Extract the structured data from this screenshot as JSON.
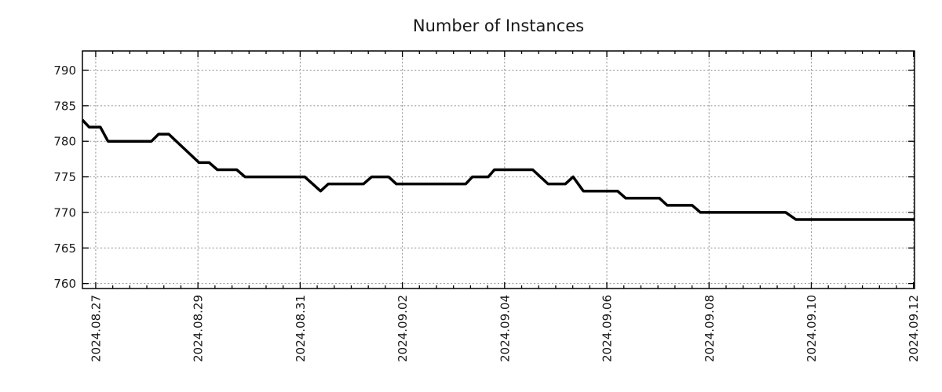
{
  "colors": {
    "background": "#ffffff",
    "text": "#1a1a1a",
    "axis": "#000000",
    "grid": "#909090",
    "line": "#000000"
  },
  "chart_data": {
    "type": "line",
    "title": "Number of Instances",
    "subtitle": "",
    "legend": {
      "show": false
    },
    "grid": {
      "show": true,
      "style": "dotted"
    },
    "x_axis": {
      "label": "",
      "unit": "days since 2024-08-27 00:00",
      "lim_days": [
        -0.26,
        16.02
      ],
      "major_ticks_days": [
        0,
        2,
        4,
        6,
        8,
        10,
        12,
        14,
        16
      ],
      "major_tick_labels": [
        "2024.08.27",
        "2024.08.29",
        "2024.08.31",
        "2024.09.02",
        "2024.09.04",
        "2024.09.06",
        "2024.09.08",
        "2024.09.10",
        "2024.09.12"
      ],
      "minor_tick_interval_days": 0.3333333,
      "tick_label_rotation_deg": -90
    },
    "y_axis": {
      "label": "",
      "lim": [
        759.3,
        792.7
      ],
      "ticks": [
        760,
        765,
        770,
        775,
        780,
        785,
        790
      ]
    },
    "series": [
      {
        "name": "instances",
        "color": "#000000",
        "line_width": 3.5,
        "points_days_value": [
          [
            -0.26,
            783
          ],
          [
            -0.13,
            782
          ],
          [
            0.09,
            782
          ],
          [
            0.24,
            780
          ],
          [
            1.09,
            780
          ],
          [
            1.23,
            781
          ],
          [
            1.43,
            781
          ],
          [
            2.02,
            777
          ],
          [
            2.22,
            777
          ],
          [
            2.38,
            776
          ],
          [
            2.76,
            776
          ],
          [
            2.92,
            775
          ],
          [
            4.09,
            775
          ],
          [
            4.4,
            773
          ],
          [
            4.55,
            774
          ],
          [
            5.24,
            774
          ],
          [
            5.4,
            775
          ],
          [
            5.73,
            775
          ],
          [
            5.88,
            774
          ],
          [
            7.24,
            774
          ],
          [
            7.37,
            775
          ],
          [
            7.68,
            775
          ],
          [
            7.8,
            776
          ],
          [
            8.55,
            776
          ],
          [
            8.85,
            774
          ],
          [
            9.19,
            774
          ],
          [
            9.34,
            775
          ],
          [
            9.54,
            773
          ],
          [
            10.21,
            773
          ],
          [
            10.37,
            772
          ],
          [
            11.03,
            772
          ],
          [
            11.18,
            771
          ],
          [
            11.67,
            771
          ],
          [
            11.83,
            770
          ],
          [
            13.5,
            770
          ],
          [
            13.7,
            769
          ],
          [
            16.02,
            769
          ]
        ]
      }
    ]
  }
}
